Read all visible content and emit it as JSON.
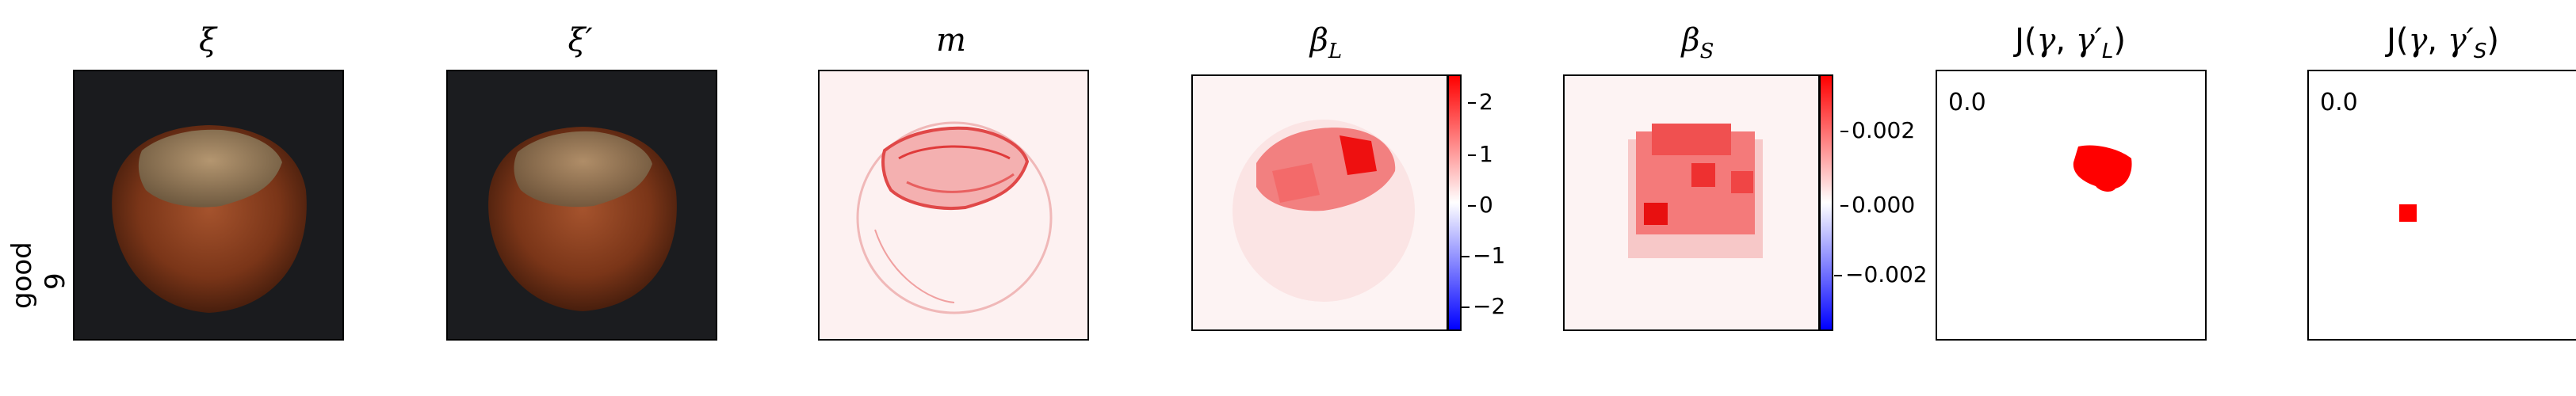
{
  "row_label": {
    "line1": "good",
    "line2": "9"
  },
  "panels": [
    {
      "title": "ξ"
    },
    {
      "title": "ξ′"
    },
    {
      "title": "m"
    },
    {
      "title": "β_L",
      "title_html_main": "β",
      "title_sub": "L"
    },
    {
      "title": "β_S",
      "title_html_main": "β",
      "title_sub": "S"
    },
    {
      "title": "J(γ, γ′_L)",
      "corner_value": "0.0"
    },
    {
      "title": "J(γ, γ′_S)",
      "corner_value": "0.0"
    }
  ],
  "colorbar_L": {
    "ticks": [
      "2",
      "1",
      "0",
      "−1",
      "−2"
    ]
  },
  "colorbar_S": {
    "ticks": [
      "0.002",
      "0.000",
      "−0.002"
    ]
  },
  "colors": {
    "positive": "#ff0000",
    "negative": "#0000ff",
    "zero": "#ffffff",
    "image_bg": "#1b1c1f"
  }
}
